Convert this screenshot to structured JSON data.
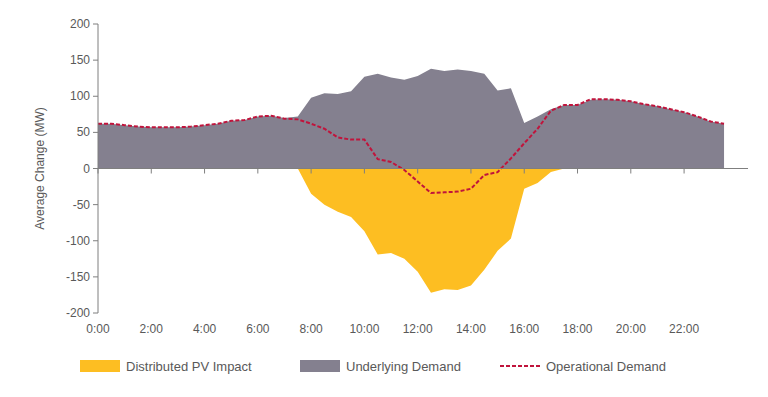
{
  "chart_data": {
    "type": "area",
    "y_label": "Average Change (MW)",
    "x": [
      0,
      0.5,
      1,
      1.5,
      2,
      2.5,
      3,
      3.5,
      4,
      4.5,
      5,
      5.5,
      6,
      6.5,
      7,
      7.5,
      8,
      8.5,
      9,
      9.5,
      10,
      10.5,
      11,
      11.5,
      12,
      12.5,
      13,
      13.5,
      14,
      14.5,
      15,
      15.5,
      16,
      16.5,
      17,
      17.5,
      18,
      18.5,
      19,
      19.5,
      20,
      20.5,
      21,
      21.5,
      22,
      22.5,
      23,
      23.5
    ],
    "series": [
      {
        "name": "Distributed PV Impact",
        "type": "area",
        "color": "#fdbe22",
        "values": [
          0,
          0,
          0,
          0,
          0,
          0,
          0,
          0,
          0,
          0,
          0,
          0,
          0,
          0,
          0,
          0,
          -35,
          -50,
          -60,
          -67,
          -87,
          -119,
          -117,
          -125,
          -143,
          -172,
          -167,
          -168,
          -162,
          -140,
          -114,
          -97,
          -28,
          -20,
          -5,
          0,
          0,
          0,
          0,
          0,
          0,
          0,
          0,
          0,
          0,
          0,
          0,
          0
        ]
      },
      {
        "name": "Underlying Demand",
        "type": "area",
        "color": "#84808f",
        "values": [
          62,
          62,
          60,
          58,
          57,
          57,
          57,
          58,
          60,
          62,
          66,
          67,
          72,
          73,
          70,
          72,
          98,
          104,
          103,
          107,
          127,
          131,
          126,
          123,
          128,
          138,
          135,
          137,
          135,
          131,
          108,
          111,
          63,
          72,
          82,
          88,
          88,
          95,
          96,
          95,
          93,
          89,
          86,
          82,
          78,
          72,
          65,
          62
        ]
      },
      {
        "name": "Operational Demand",
        "type": "line",
        "line_style": "dashed",
        "color": "#c0143c",
        "values": [
          62,
          62,
          60,
          58,
          57,
          57,
          57,
          58,
          60,
          62,
          66,
          67,
          72,
          73,
          69,
          68,
          62,
          55,
          43,
          40,
          40,
          13,
          9,
          -2,
          -18,
          -34,
          -33,
          -32,
          -28,
          -9,
          -5,
          14,
          35,
          55,
          80,
          88,
          88,
          96,
          96,
          95,
          93,
          89,
          86,
          82,
          78,
          72,
          65,
          62
        ]
      }
    ],
    "xlim": [
      0,
      24.4
    ],
    "xticks": [
      {
        "value": 0,
        "label": "0:00"
      },
      {
        "value": 2,
        "label": "2:00"
      },
      {
        "value": 4,
        "label": "4:00"
      },
      {
        "value": 6,
        "label": "6:00"
      },
      {
        "value": 8,
        "label": "8:00"
      },
      {
        "value": 10,
        "label": "10:00"
      },
      {
        "value": 12,
        "label": "12:00"
      },
      {
        "value": 14,
        "label": "14:00"
      },
      {
        "value": 16,
        "label": "16:00"
      },
      {
        "value": 18,
        "label": "18:00"
      },
      {
        "value": 20,
        "label": "20:00"
      },
      {
        "value": 22,
        "label": "22:00"
      }
    ],
    "ylim": [
      -200,
      200
    ],
    "yticks": [
      -200,
      -150,
      -100,
      -50,
      0,
      50,
      100,
      150,
      200
    ],
    "grid": false,
    "legend": "bottom"
  }
}
